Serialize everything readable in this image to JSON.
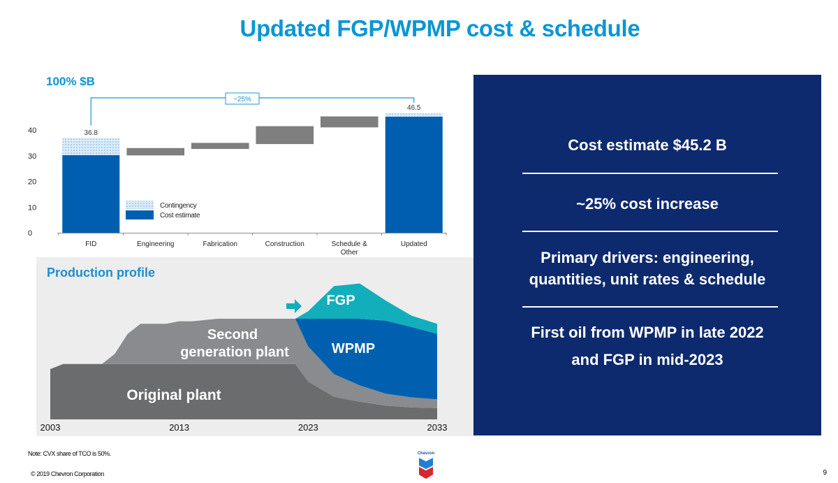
{
  "slide": {
    "title": "Updated FGP/WPMP cost & schedule",
    "page_number": "9",
    "note": "Note: CVX share of TCO is 50%.",
    "copyright": "© 2019 Chevron Corporation",
    "logo_text": "Chevron"
  },
  "colors": {
    "title_blue": "#0a96d6",
    "cost_estimate": "#005eb0",
    "contingency": "#c9e0f4",
    "delta_bar": "#7f7f7f",
    "navy_panel": "#0d2a6e",
    "original_plant": "#6b6c6e",
    "second_gen": "#898b8e",
    "wpmp": "#0060b0",
    "fgp": "#12aebb"
  },
  "cost_chart": {
    "unit_label": "100% $B",
    "bracket_label": "~25%"
  },
  "production": {
    "title": "Production profile",
    "labels": {
      "original": "Original plant",
      "second_line1": "Second",
      "second_line2": "generation plant",
      "wpmp": "WPMP",
      "fgp": "FGP"
    },
    "years": [
      "2003",
      "2013",
      "2023",
      "2033"
    ]
  },
  "right_panel": {
    "items": [
      "Cost estimate $45.2 B",
      "~25% cost increase",
      "Primary drivers: engineering,",
      "quantities, unit rates & schedule",
      "First oil from WPMP in late 2022",
      "and FGP in mid-2023"
    ]
  },
  "chart_data": [
    {
      "type": "bar",
      "subtype": "waterfall",
      "title": "100% $B",
      "categories": [
        "FID",
        "Engineering",
        "Fabrication",
        "Construction",
        "Schedule & Other",
        "Updated"
      ],
      "category_lines": [
        [
          "FID"
        ],
        [
          "Engineering"
        ],
        [
          "Fabrication"
        ],
        [
          "Construction"
        ],
        [
          "Schedule &",
          "Other"
        ],
        [
          "Updated"
        ]
      ],
      "series": [
        {
          "name": "Cost estimate",
          "kind": "total",
          "values": [
            30.2,
            null,
            null,
            null,
            null,
            45.2
          ]
        },
        {
          "name": "Contingency",
          "kind": "total",
          "values": [
            6.6,
            null,
            null,
            null,
            null,
            1.3
          ]
        },
        {
          "name": "Increment",
          "kind": "floating",
          "ranges": [
            null,
            [
              30.2,
              32.9
            ],
            [
              32.7,
              34.9
            ],
            [
              34.6,
              41.4
            ],
            [
              41.1,
              45.2
            ],
            null
          ]
        }
      ],
      "data_labels": {
        "FID": "36.8",
        "Updated": "46.5"
      },
      "annotation": "~25%",
      "legend": [
        "Contingency",
        "Cost estimate"
      ],
      "legend_position": "inside-bottom-left",
      "yticks": [
        0,
        10,
        20,
        30,
        40
      ],
      "ylim": [
        0,
        47
      ],
      "xlabel": "",
      "ylabel": "",
      "grid": false
    },
    {
      "type": "area",
      "title": "Production profile",
      "x_ticks": [
        "2003",
        "2013",
        "2023",
        "2033"
      ],
      "x": [
        2003,
        2004,
        2007,
        2008,
        2009,
        2010,
        2012,
        2013,
        2014,
        2016,
        2017,
        2019,
        2021,
        2022,
        2023,
        2025,
        2027,
        2029,
        2031,
        2033
      ],
      "stacked": true,
      "series": [
        {
          "name": "Original plant",
          "values": [
            4.0,
            4.4,
            4.4,
            4.4,
            4.4,
            4.4,
            4.4,
            4.4,
            4.4,
            4.4,
            4.4,
            4.4,
            4.4,
            4.4,
            3.0,
            1.8,
            1.4,
            1.1,
            0.95,
            0.9
          ]
        },
        {
          "name": "Second generation plant",
          "values": [
            0,
            0,
            0,
            0.8,
            2.4,
            3.2,
            3.2,
            3.4,
            3.4,
            3.6,
            3.6,
            3.6,
            3.6,
            3.6,
            2.8,
            1.8,
            1.3,
            0.95,
            0.8,
            0.7
          ]
        },
        {
          "name": "WPMP",
          "values": [
            0,
            0,
            0,
            0,
            0,
            0,
            0,
            0,
            0,
            0,
            0,
            0,
            0,
            0,
            2.2,
            4.4,
            5.3,
            5.8,
            5.6,
            5.2
          ]
        },
        {
          "name": "FGP",
          "values": [
            0,
            0,
            0,
            0,
            0,
            0,
            0,
            0,
            0,
            0,
            0,
            0,
            0,
            0,
            0.6,
            2.6,
            2.8,
            1.6,
            0.9,
            0.8
          ]
        }
      ],
      "annotations": [
        "arrow pointing to FGP start (~2022)"
      ],
      "ylabel": "",
      "xlabel": "",
      "grid": false
    }
  ]
}
